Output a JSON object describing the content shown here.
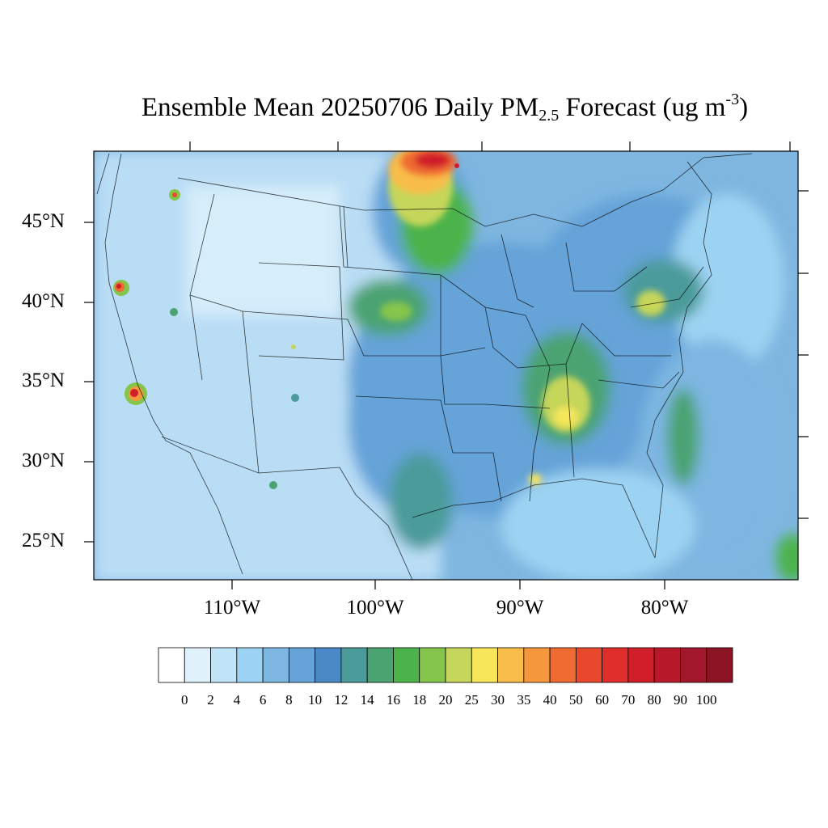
{
  "title": {
    "prefix": "Ensemble Mean 20250706 Daily PM",
    "subscript": "2.5",
    "middle": " Forecast (ug m",
    "superscript": "-3",
    "suffix": ")"
  },
  "map": {
    "lon_range": [
      -119.5,
      -70.8
    ],
    "lat_range": [
      22.7,
      49.5
    ],
    "lat_labels": [
      "45°N",
      "40°N",
      "35°N",
      "30°N",
      "25°N"
    ],
    "lon_labels": [
      "110°W",
      "100°W",
      "90°W",
      "80°W"
    ],
    "ocean_color": "#7eb6e0",
    "land_base_color": "#b9ddf5"
  },
  "colorbar": {
    "labels": [
      "0",
      "2",
      "4",
      "6",
      "8",
      "10",
      "12",
      "14",
      "16",
      "18",
      "20",
      "25",
      "30",
      "35",
      "40",
      "50",
      "60",
      "70",
      "80",
      "90",
      "100"
    ],
    "colors": [
      "#ffffff",
      "#dff1fb",
      "#bfe3f7",
      "#9dd3f2",
      "#7db6e1",
      "#65a3d8",
      "#4a89c6",
      "#4b9b9b",
      "#4ca372",
      "#4cb34a",
      "#86c54c",
      "#c5d65a",
      "#f7e65a",
      "#f8bd4a",
      "#f5973d",
      "#f06b31",
      "#e8492d",
      "#df2e2c",
      "#d01f2a",
      "#b8192a",
      "#a2172b",
      "#8d1425"
    ]
  }
}
